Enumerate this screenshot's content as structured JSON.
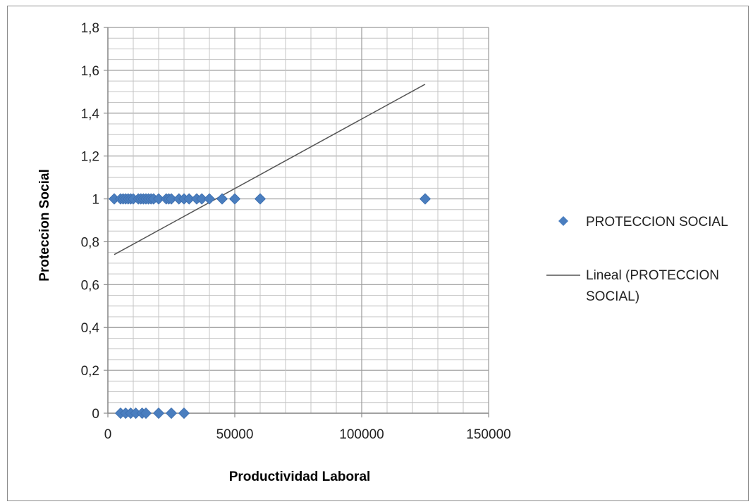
{
  "chart_data": {
    "type": "scatter",
    "title": "",
    "xlabel": "Productividad Laboral",
    "ylabel": "Proteccion Social",
    "xlim": [
      0,
      150000
    ],
    "ylim": [
      0,
      1.8
    ],
    "x_ticks": [
      "0",
      "50000",
      "100000",
      "150000"
    ],
    "y_ticks": [
      "0",
      "0,2",
      "0,4",
      "0,6",
      "0,8",
      "1",
      "1,2",
      "1,4",
      "1,6",
      "1,8"
    ],
    "grid": true,
    "legend_position": "right",
    "series": [
      {
        "name": "PROTECCION SOCIAL",
        "kind": "scatter",
        "marker": "diamond",
        "color": "#4a7ebf",
        "points": [
          {
            "x": 2500,
            "y": 1
          },
          {
            "x": 5000,
            "y": 1
          },
          {
            "x": 6000,
            "y": 1
          },
          {
            "x": 7000,
            "y": 1
          },
          {
            "x": 8000,
            "y": 1
          },
          {
            "x": 9000,
            "y": 1
          },
          {
            "x": 10000,
            "y": 1
          },
          {
            "x": 12000,
            "y": 1
          },
          {
            "x": 13000,
            "y": 1
          },
          {
            "x": 14000,
            "y": 1
          },
          {
            "x": 15000,
            "y": 1
          },
          {
            "x": 16000,
            "y": 1
          },
          {
            "x": 17000,
            "y": 1
          },
          {
            "x": 18000,
            "y": 1
          },
          {
            "x": 20000,
            "y": 1
          },
          {
            "x": 23000,
            "y": 1
          },
          {
            "x": 24000,
            "y": 1
          },
          {
            "x": 25000,
            "y": 1
          },
          {
            "x": 28000,
            "y": 1
          },
          {
            "x": 30000,
            "y": 1
          },
          {
            "x": 32000,
            "y": 1
          },
          {
            "x": 35000,
            "y": 1
          },
          {
            "x": 37000,
            "y": 1
          },
          {
            "x": 40000,
            "y": 1
          },
          {
            "x": 45000,
            "y": 1
          },
          {
            "x": 50000,
            "y": 1
          },
          {
            "x": 60000,
            "y": 1
          },
          {
            "x": 125000,
            "y": 1
          },
          {
            "x": 5000,
            "y": 0
          },
          {
            "x": 7000,
            "y": 0
          },
          {
            "x": 9000,
            "y": 0
          },
          {
            "x": 11000,
            "y": 0
          },
          {
            "x": 13500,
            "y": 0
          },
          {
            "x": 15000,
            "y": 0
          },
          {
            "x": 20000,
            "y": 0
          },
          {
            "x": 25000,
            "y": 0
          },
          {
            "x": 30000,
            "y": 0
          }
        ]
      },
      {
        "name": "Lineal (PROTECCION SOCIAL)",
        "kind": "trendline",
        "color": "#555555",
        "points": [
          {
            "x": 2500,
            "y": 0.74
          },
          {
            "x": 125000,
            "y": 1.535
          }
        ]
      }
    ]
  }
}
